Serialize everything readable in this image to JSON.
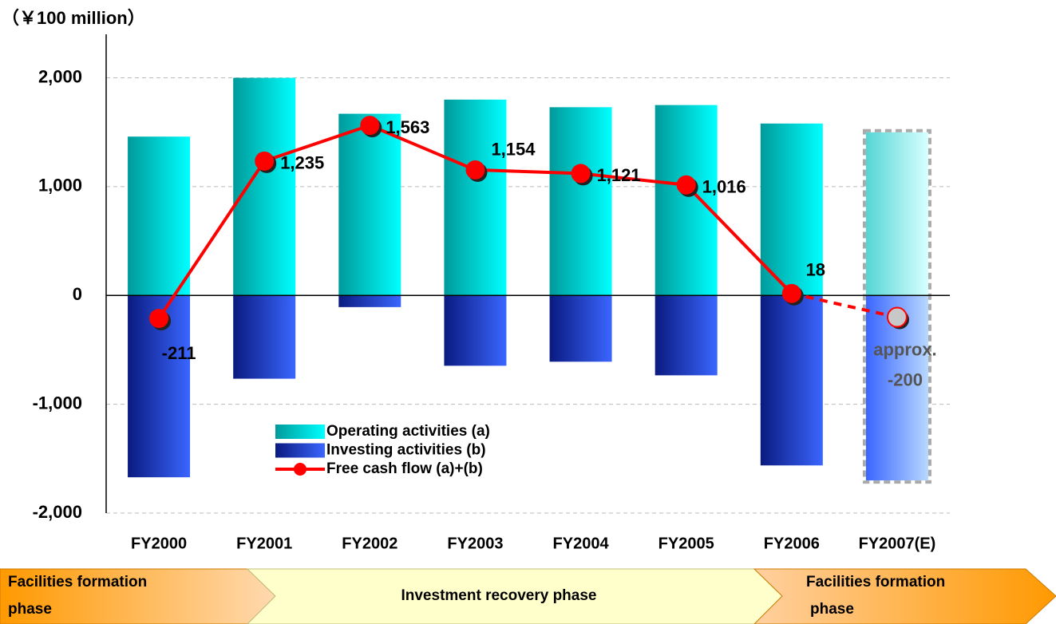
{
  "chart_data": {
    "type": "bar",
    "y_label": "（￥100 million）",
    "categories": [
      "FY2000",
      "FY2001",
      "FY2002",
      "FY2003",
      "FY2004",
      "FY2005",
      "FY2006",
      "FY2007(E)"
    ],
    "series": [
      {
        "name": "Operating activities (a)",
        "color": "#00e5e5",
        "values": [
          1460,
          2000,
          1670,
          1800,
          1730,
          1750,
          1580,
          1500
        ]
      },
      {
        "name": "Investing activities (b)",
        "color": "#2244cc",
        "values": [
          -1671,
          -765,
          -107,
          -646,
          -609,
          -734,
          -1562,
          -1700
        ]
      },
      {
        "name": "Free cash flow (a)+(b)",
        "type": "line",
        "color": "#ff0000",
        "values": [
          -211,
          1235,
          1563,
          1154,
          1121,
          1016,
          18,
          -200
        ],
        "value_labels": [
          "-211",
          "1,235",
          "1,563",
          "1,154",
          "1,121",
          "1,016",
          "18",
          "approx. -200"
        ]
      }
    ],
    "ylim": [
      -2000,
      2400
    ],
    "yticks": [
      {
        "value": -2000,
        "label": "-2,000"
      },
      {
        "value": -1000,
        "label": "-1,000"
      },
      0,
      {
        "value": 1000,
        "label": "1,000"
      },
      {
        "value": 2000,
        "label": "2,000"
      }
    ],
    "grid": true,
    "legend": "lower-left",
    "phases": [
      "Facilities formation phase",
      "Investment recovery phase",
      "Facilities formation phase"
    ]
  }
}
